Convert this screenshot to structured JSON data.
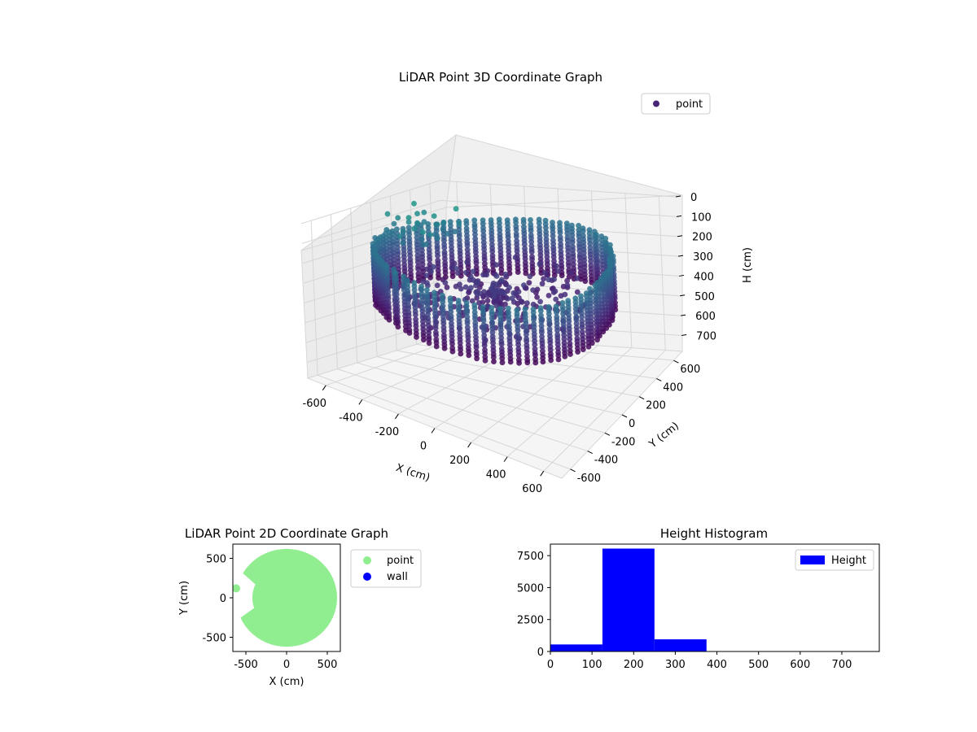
{
  "chart_data": [
    {
      "type": "scatter",
      "projection": "3d",
      "title": "LiDAR Point 3D Coordinate Graph",
      "xlabel": "X (cm)",
      "ylabel": "Y (cm)",
      "zlabel": "H (cm)",
      "xlim": [
        -700,
        700
      ],
      "ylim": [
        -700,
        700
      ],
      "zlim": [
        0,
        780
      ],
      "z_inverted": true,
      "xticks": [
        -600,
        -400,
        -200,
        0,
        200,
        400,
        600
      ],
      "yticks": [
        -600,
        -400,
        -200,
        0,
        200,
        400,
        600
      ],
      "zticks": [
        0,
        100,
        200,
        300,
        400,
        500,
        600,
        700
      ],
      "colormap": "viridis",
      "legend": {
        "labels": [
          "point"
        ],
        "placement": "top-right"
      },
      "grid": true,
      "series": [
        {
          "name": "point",
          "color": "#482677",
          "description_values": "ring of points radius ~600, heights 120-400; sparse high points near x -600..-400"
        }
      ]
    },
    {
      "type": "scatter",
      "title": "LiDAR Point 2D Coordinate Graph",
      "xlabel": "X (cm)",
      "ylabel": "Y (cm)",
      "xlim": [
        -660,
        660
      ],
      "ylim": [
        -680,
        680
      ],
      "xticks": [
        -500,
        0,
        500
      ],
      "yticks": [
        -500,
        0,
        500
      ],
      "legend": {
        "labels": [
          "point",
          "wall"
        ],
        "placement": "outside-right"
      },
      "series": [
        {
          "name": "point",
          "color": "#90ee90"
        },
        {
          "name": "wall",
          "color": "#0000ff"
        }
      ]
    },
    {
      "type": "bar",
      "title": "Height Histogram",
      "xlim": [
        0,
        790
      ],
      "ylim": [
        0,
        8400
      ],
      "xticks": [
        0,
        100,
        200,
        300,
        400,
        500,
        600,
        700
      ],
      "yticks": [
        0,
        2500,
        5000,
        7500
      ],
      "bins": [
        {
          "x0": 0,
          "x1": 125,
          "value": 550
        },
        {
          "x0": 125,
          "x1": 250,
          "value": 8050
        },
        {
          "x0": 250,
          "x1": 375,
          "value": 950
        },
        {
          "x0": 375,
          "x1": 500,
          "value": 5
        },
        {
          "x0": 500,
          "x1": 625,
          "value": 2
        },
        {
          "x0": 625,
          "x1": 750,
          "value": 1
        }
      ],
      "color": "#0000ff",
      "legend": {
        "labels": [
          "Height"
        ],
        "placement": "top-right"
      }
    }
  ]
}
